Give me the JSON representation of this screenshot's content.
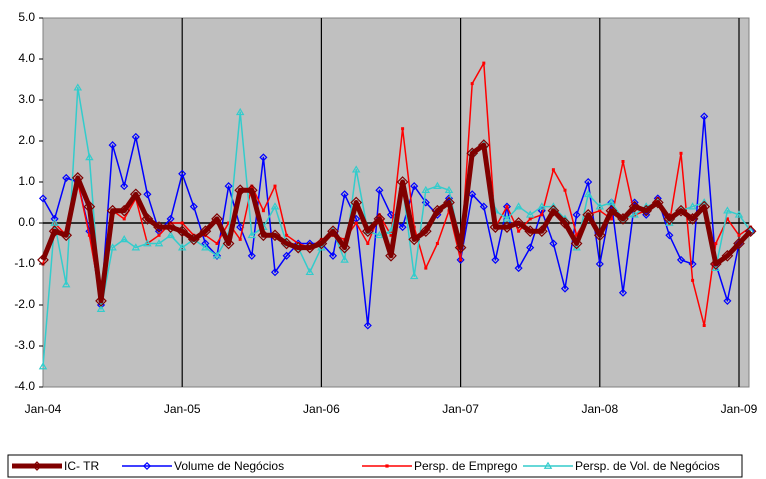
{
  "chart_data": {
    "type": "line",
    "categories": [
      "Jan-04",
      null,
      null,
      null,
      null,
      null,
      null,
      null,
      null,
      null,
      null,
      null,
      "Jan-05",
      null,
      null,
      null,
      null,
      null,
      null,
      null,
      null,
      null,
      null,
      null,
      "Jan-06",
      null,
      null,
      null,
      null,
      null,
      null,
      null,
      null,
      null,
      null,
      null,
      "Jan-07",
      null,
      null,
      null,
      null,
      null,
      null,
      null,
      null,
      null,
      null,
      null,
      "Jan-08",
      null,
      null,
      null,
      null,
      null,
      null,
      null,
      null,
      null,
      null,
      null,
      "Jan-09",
      null
    ],
    "ylim": [
      -4,
      5
    ],
    "yticks": [
      {
        "value": -4,
        "label": "-4.0"
      },
      {
        "value": -3,
        "label": "-3.0"
      },
      {
        "value": -2,
        "label": "-2.0"
      },
      {
        "value": -1,
        "label": "-1.0"
      },
      {
        "value": 0,
        "label": "0.0"
      },
      {
        "value": 1,
        "label": "1.0"
      },
      {
        "value": 2,
        "label": "2.0"
      },
      {
        "value": 3,
        "label": "3.0"
      },
      {
        "value": 4,
        "label": "4.0"
      },
      {
        "value": 5,
        "label": "5.0"
      }
    ],
    "background": "#c0c0c0",
    "legend": "bottom",
    "series": [
      {
        "name": "Volume de Negócios",
        "color": "#0000ff",
        "marker": "diamond",
        "line_width": 1.5,
        "values": [
          0.6,
          0.1,
          1.1,
          1.0,
          -0.2,
          -2.0,
          1.9,
          0.9,
          2.1,
          0.7,
          -0.2,
          0.1,
          1.2,
          0.4,
          -0.5,
          -0.8,
          0.9,
          -0.1,
          -0.8,
          1.6,
          -1.2,
          -0.8,
          -0.5,
          -0.5,
          -0.5,
          -0.8,
          0.7,
          0.1,
          -2.5,
          0.8,
          0.2,
          -0.1,
          0.9,
          0.5,
          0.2,
          0.6,
          -0.9,
          0.7,
          0.4,
          -0.9,
          0.4,
          -1.1,
          -0.6,
          0.3,
          -0.5,
          -1.6,
          0.2,
          1.0,
          -1.0,
          0.5,
          -1.7,
          0.5,
          0.2,
          0.6,
          -0.3,
          -0.9,
          -1.0,
          2.6,
          -1.0,
          -1.9,
          -0.5,
          -0.2
        ]
      },
      {
        "name": "Persp. de Emprego",
        "color": "#ff0000",
        "marker": "square",
        "line_width": 1.5,
        "values": [
          -1.0,
          0.0,
          -0.3,
          1.0,
          -0.3,
          -1.9,
          0.3,
          0.1,
          0.6,
          -0.5,
          -0.3,
          0.0,
          0.0,
          -0.3,
          -0.3,
          -0.5,
          0.0,
          -0.4,
          0.9,
          0.3,
          0.9,
          -0.3,
          -0.5,
          -0.6,
          -0.4,
          -0.3,
          -0.4,
          0.0,
          -0.5,
          0.2,
          -0.3,
          2.3,
          -0.1,
          -1.1,
          -0.5,
          0.3,
          -0.9,
          3.4,
          3.9,
          -0.1,
          0.4,
          -0.2,
          0.1,
          0.2,
          1.3,
          0.8,
          -0.3,
          0.2,
          0.3,
          0.1,
          1.5,
          0.2,
          0.3,
          0.6,
          0.0,
          1.7,
          -1.4,
          -2.5,
          -0.5,
          0.1,
          -0.3,
          -0.1
        ]
      },
      {
        "name": "Persp. de Vol. de Negócios",
        "color": "#33cccc",
        "marker": "triangle",
        "line_width": 1.5,
        "values": [
          -3.5,
          0.0,
          -1.5,
          3.3,
          1.6,
          -2.1,
          -0.6,
          -0.4,
          -0.6,
          -0.5,
          -0.5,
          -0.3,
          -0.6,
          -0.4,
          -0.6,
          -0.8,
          -0.3,
          2.7,
          -0.3,
          -0.1,
          0.4,
          -0.5,
          -0.6,
          -1.2,
          -0.6,
          -0.2,
          -0.9,
          1.3,
          -0.2,
          -0.3,
          -0.2,
          0.9,
          -1.3,
          0.8,
          0.9,
          0.8,
          -0.5,
          1.7,
          1.9,
          0.3,
          0.1,
          0.4,
          0.2,
          0.4,
          0.4,
          0.1,
          -0.6,
          0.7,
          0.4,
          0.5,
          0.1,
          0.2,
          0.4,
          0.5,
          0.0,
          0.3,
          0.4,
          0.5,
          -1.1,
          0.3,
          0.2,
          -0.2
        ]
      },
      {
        "name": "IC- TR",
        "color": "#800000",
        "marker": "diamond",
        "line_width": 5,
        "values": [
          -0.9,
          -0.2,
          -0.3,
          1.1,
          0.4,
          -1.9,
          0.3,
          0.3,
          0.7,
          0.1,
          -0.1,
          -0.1,
          -0.2,
          -0.4,
          -0.2,
          0.1,
          -0.5,
          0.8,
          0.8,
          -0.3,
          -0.3,
          -0.5,
          -0.6,
          -0.6,
          -0.5,
          -0.2,
          -0.6,
          0.5,
          -0.2,
          0.1,
          -0.8,
          1.0,
          -0.4,
          -0.2,
          0.3,
          0.5,
          -0.6,
          1.7,
          1.9,
          -0.1,
          -0.1,
          0.0,
          -0.2,
          -0.2,
          0.3,
          0.0,
          -0.5,
          0.2,
          -0.3,
          0.3,
          0.1,
          0.4,
          0.3,
          0.5,
          0.1,
          0.3,
          0.1,
          0.4,
          -1.0,
          -0.8,
          -0.5,
          -0.2
        ]
      }
    ]
  }
}
